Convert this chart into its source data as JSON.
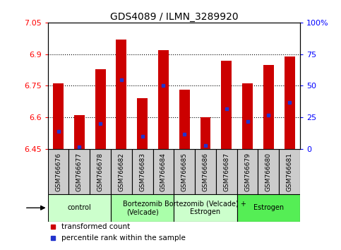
{
  "title": "GDS4089 / ILMN_3289920",
  "samples": [
    "GSM766676",
    "GSM766677",
    "GSM766678",
    "GSM766682",
    "GSM766683",
    "GSM766684",
    "GSM766685",
    "GSM766686",
    "GSM766687",
    "GSM766679",
    "GSM766680",
    "GSM766681"
  ],
  "transformed_counts": [
    6.76,
    6.61,
    6.83,
    6.97,
    6.69,
    6.92,
    6.73,
    6.6,
    6.87,
    6.76,
    6.85,
    6.89
  ],
  "percentile_ranks": [
    14,
    2,
    20,
    55,
    10,
    50,
    12,
    3,
    32,
    22,
    27,
    37
  ],
  "y_min": 6.45,
  "y_max": 7.05,
  "y_ticks": [
    6.45,
    6.6,
    6.75,
    6.9,
    7.05
  ],
  "y_tick_labels": [
    "6.45",
    "6.6",
    "6.75",
    "6.9",
    "7.05"
  ],
  "right_y_ticks": [
    0,
    25,
    50,
    75,
    100
  ],
  "right_y_labels": [
    "0",
    "25",
    "50",
    "75",
    "100%"
  ],
  "bar_color": "#cc0000",
  "dot_color": "#2233cc",
  "plot_bg": "#ffffff",
  "sample_cell_bg": "#cccccc",
  "groups": [
    {
      "label": "control",
      "start": 0,
      "end": 3,
      "color": "#ccffcc"
    },
    {
      "label": "Bortezomib\n(Velcade)",
      "start": 3,
      "end": 6,
      "color": "#aaffaa"
    },
    {
      "label": "Bortezomib (Velcade) +\nEstrogen",
      "start": 6,
      "end": 9,
      "color": "#ccffcc"
    },
    {
      "label": "Estrogen",
      "start": 9,
      "end": 12,
      "color": "#55ee55"
    }
  ],
  "bar_width": 0.5,
  "dotted_lines": [
    6.6,
    6.75,
    6.9
  ]
}
